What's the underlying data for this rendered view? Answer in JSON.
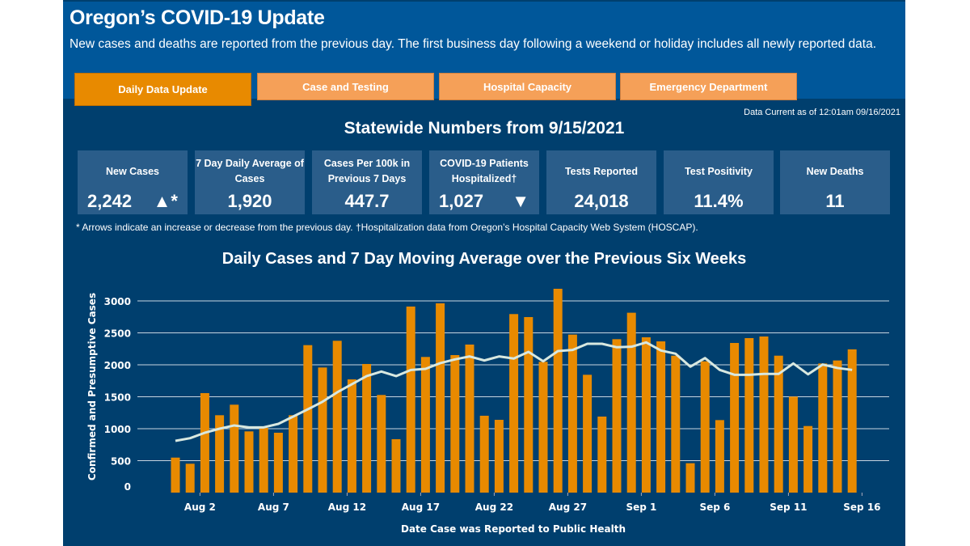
{
  "header": {
    "title": "Oregon’s COVID-19 Update",
    "subtitle": "New cases and deaths are reported from the previous day. The first business day following a weekend or holiday includes all newly reported data."
  },
  "tabs": [
    {
      "label": "Daily Data Update",
      "active": true
    },
    {
      "label": "Case and Testing"
    },
    {
      "label": "Hospital Capacity"
    },
    {
      "label": "Emergency Department"
    }
  ],
  "data_current": "Data Current as of 12:01am 09/16/2021",
  "stats_title": "Statewide Numbers from 9/15/2021",
  "cards": [
    {
      "label": "New Cases",
      "value": "2,242",
      "arrow": "▲*"
    },
    {
      "label": "7 Day Daily Average of Cases",
      "value": "1,920"
    },
    {
      "label": "Cases Per 100k in Previous 7 Days",
      "value": "447.7"
    },
    {
      "label": "COVID-19 Patients Hospitalized†",
      "value": "1,027",
      "arrow": "▼"
    },
    {
      "label": "Tests Reported",
      "value": "24,018"
    },
    {
      "label": "Test Positivity",
      "value": "11.4%"
    },
    {
      "label": "New Deaths",
      "value": "11"
    }
  ],
  "footnote": "* Arrows indicate an increase or decrease from the previous day. †Hospitalization data from Oregon’s Hospital Capacity Web System (HOSCAP).",
  "colors": {
    "header": "#00579a",
    "background": "#003f6e",
    "card": "#2a5d8a",
    "bar": "#e88a00",
    "line": "#d8e8e0",
    "tab": "#f5a058",
    "tab_active": "#e88a00"
  },
  "chart_data": {
    "type": "bar",
    "title": "Daily Cases and 7 Day Moving Average over the Previous Six Weeks",
    "xlabel": "Date Case was Reported to Public Health",
    "ylabel": "Confirmed and Presumptive Cases",
    "ylim": [
      0,
      3000
    ],
    "yticks": [
      0,
      500,
      1000,
      1500,
      2000,
      2500,
      3000
    ],
    "xtick_labels": [
      "Aug 2",
      "Aug 7",
      "Aug 12",
      "Aug 17",
      "Aug 22",
      "Aug 27",
      "Sep 1",
      "Sep 6",
      "Sep 11",
      "Sep 16"
    ],
    "grid": true,
    "start_date": "Jul 31",
    "end_date": "Sep 15",
    "series": [
      {
        "type": "bar",
        "values": [
          548,
          452,
          1557,
          1211,
          1376,
          958,
          1013,
          937,
          1211,
          2308,
          1958,
          2376,
          1772,
          2013,
          1528,
          836,
          2912,
          2123,
          2962,
          2152,
          2317,
          1203,
          1139,
          2794,
          2747,
          2047,
          3190,
          2473,
          1844,
          1190,
          2401,
          2815,
          2431,
          2367,
          2143,
          460,
          2055,
          1135,
          2342,
          2418,
          2443,
          2143,
          1502,
          1042,
          2021,
          2068,
          2242
        ]
      },
      {
        "type": "line",
        "values": [
          810,
          852,
          937,
          1000,
          1051,
          1021,
          1021,
          1076,
          1190,
          1304,
          1422,
          1570,
          1697,
          1823,
          1895,
          1823,
          1920,
          1937,
          2026,
          2085,
          2131,
          2068,
          2131,
          2098,
          2203,
          2055,
          2215,
          2232,
          2329,
          2329,
          2275,
          2283,
          2351,
          2224,
          2173,
          1971,
          2105,
          1920,
          1844,
          1844,
          1857,
          1857,
          2021,
          1852,
          2004,
          1950,
          1920
        ]
      }
    ]
  }
}
